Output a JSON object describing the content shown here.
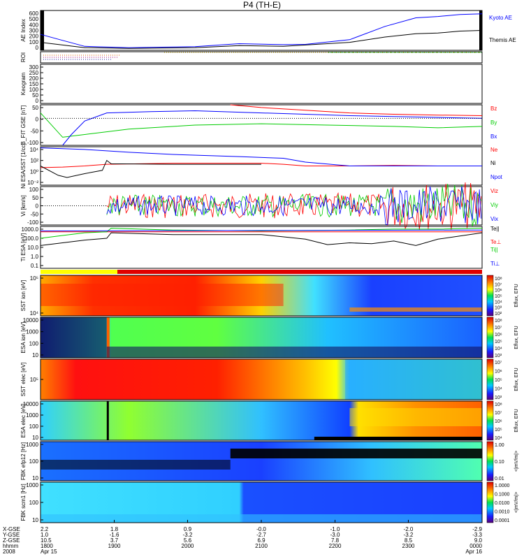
{
  "title": "P4 (TH-E)",
  "colors": {
    "kyoto": "#0000ff",
    "themis": "#000000",
    "bz": "#ff0000",
    "by": "#00cc00",
    "bx": "#0000ff",
    "ne": "#ff0000",
    "ni": "#000000",
    "npot": "#0000ff",
    "vx": "#0000ff",
    "vy": "#00cc00",
    "vz": "#ff0000",
    "tpar": "#000000",
    "teperp": "#ff0000",
    "tipar": "#00cc00",
    "tiperp": "#0000ff"
  },
  "chart_data": [
    {
      "id": "ae",
      "type": "line",
      "ylabel": "AE Index",
      "yticks": [
        "600",
        "500",
        "400",
        "300",
        "200",
        "100",
        "0"
      ],
      "ylim": [
        0,
        600
      ],
      "series": [
        {
          "name": "Kyoto AE",
          "x": [
            0,
            0.05,
            0.1,
            0.2,
            0.35,
            0.45,
            0.55,
            0.6,
            0.7,
            0.78,
            0.85,
            0.9,
            0.95,
            1.0
          ],
          "values": [
            240,
            150,
            60,
            40,
            55,
            100,
            85,
            90,
            160,
            360,
            490,
            510,
            540,
            550
          ]
        },
        {
          "name": "Themis AE",
          "x": [
            0,
            0.05,
            0.1,
            0.2,
            0.35,
            0.45,
            0.55,
            0.6,
            0.7,
            0.78,
            0.85,
            0.9,
            0.95,
            1.0
          ],
          "values": [
            120,
            80,
            40,
            30,
            40,
            70,
            60,
            80,
            120,
            200,
            250,
            260,
            290,
            300
          ]
        }
      ]
    },
    {
      "id": "roi",
      "type": "bar",
      "ylabel": "ROI"
    },
    {
      "id": "keogram",
      "type": "heatmap",
      "ylabel": "Keogram",
      "yticks": [
        "300",
        "250",
        "200",
        "150",
        "100",
        "50",
        "0"
      ]
    },
    {
      "id": "bfield",
      "type": "line",
      "ylabel": "B_FIT GSE [nT]",
      "yticks": [
        "50",
        "0",
        "-50",
        "-100"
      ],
      "ylim": [
        -100,
        50
      ],
      "series": [
        {
          "name": "Bz",
          "x": [
            0.43,
            0.5,
            0.6,
            0.7,
            0.8,
            0.9,
            1.0
          ],
          "values": [
            50,
            40,
            30,
            20,
            15,
            12,
            10
          ]
        },
        {
          "name": "By",
          "x": [
            0,
            0.05,
            0.1,
            0.2,
            0.35,
            0.5,
            0.65,
            0.8,
            0.9,
            1.0
          ],
          "values": [
            20,
            -70,
            -60,
            -40,
            -25,
            -20,
            -25,
            -30,
            -35,
            -30
          ]
        },
        {
          "name": "Bx",
          "x": [
            0.05,
            0.07,
            0.1,
            0.15,
            0.25,
            0.35,
            0.5,
            0.6,
            0.7,
            0.85,
            1.0
          ],
          "values": [
            -100,
            -60,
            -10,
            20,
            25,
            28,
            20,
            15,
            10,
            5,
            0
          ]
        }
      ]
    },
    {
      "id": "density",
      "type": "line",
      "ylabel": "Ni ESA/SST [1/cc]",
      "yticks": [
        "10⁴",
        "10²",
        "10⁰",
        "10⁻²"
      ],
      "ylim": [
        -3,
        4
      ],
      "series": [
        {
          "name": "Ne",
          "x": [
            0,
            0.05,
            0.1,
            0.15,
            0.3,
            0.5,
            0.55,
            0.6,
            0.7,
            0.8,
            0.9,
            1.0
          ],
          "values": [
            0.2,
            0.3,
            0.5,
            0.8,
            1.0,
            1.0,
            0.8,
            0.5,
            0.5,
            0.6,
            0.5,
            0.5
          ]
        },
        {
          "name": "Ni",
          "x": [
            0,
            0.04,
            0.06,
            0.1,
            0.14,
            0.15,
            0.16,
            0.3,
            0.5
          ],
          "values": [
            0.5,
            -1.2,
            -1.6,
            -0.9,
            -0.3,
            1.5,
            0.9,
            0.8,
            0.8
          ]
        },
        {
          "name": "Npot",
          "x": [
            0,
            0.1,
            0.2,
            0.3,
            0.45,
            0.55,
            0.6,
            0.7,
            0.8,
            0.9,
            1.0
          ],
          "values": [
            3.8,
            3.5,
            3.0,
            2.6,
            2.2,
            1.9,
            1.2,
            0.5,
            0.5,
            0.5,
            0.5
          ]
        }
      ]
    },
    {
      "id": "velocity",
      "type": "line",
      "ylabel": "Vi [km/s]",
      "yticks": [
        "100",
        "50",
        "0",
        "-50",
        "-100"
      ],
      "ylim": [
        -100,
        100
      ],
      "series": [
        {
          "name": "Viz",
          "x": [
            0.15,
            1.0
          ],
          "values": [
            0,
            0
          ]
        },
        {
          "name": "Viy",
          "x": [
            0.15,
            1.0
          ],
          "values": [
            0,
            0
          ]
        },
        {
          "name": "Vix",
          "x": [
            0.15,
            1.0
          ],
          "values": [
            0,
            0
          ]
        }
      ]
    },
    {
      "id": "temperature",
      "type": "line",
      "ylabel": "Ti ESA [eV]",
      "yticks": [
        "1000.0",
        "100.0",
        "10.0",
        "1.0",
        "0.1"
      ],
      "ylim": [
        -1,
        3.6
      ],
      "series": [
        {
          "name": "Te||",
          "x": [
            0,
            0.05,
            0.1,
            0.15,
            0.16,
            0.3,
            0.5,
            0.6,
            0.65,
            0.7,
            0.75,
            0.8,
            0.85,
            0.9,
            1.0
          ],
          "values": [
            1.5,
            1.8,
            2.1,
            2.3,
            2.9,
            2.7,
            2.7,
            2.2,
            1.6,
            1.8,
            1.7,
            2.0,
            1.5,
            2.2,
            2.9
          ]
        },
        {
          "name": "Te⊥",
          "x": [
            0,
            1.0
          ],
          "values": [
            3.0,
            3.0
          ]
        },
        {
          "name": "Ti||",
          "x": [
            0,
            0.05,
            0.1,
            0.15,
            0.16,
            0.3,
            0.5,
            0.7,
            0.8,
            0.9,
            1.0
          ],
          "values": [
            2.3,
            2.6,
            2.9,
            3.0,
            3.4,
            3.2,
            3.1,
            3.2,
            3.3,
            3.3,
            3.4
          ]
        },
        {
          "name": "Ti⊥",
          "x": [
            0,
            1.0
          ],
          "values": [
            3.1,
            3.2
          ]
        }
      ]
    },
    {
      "id": "sst_ion",
      "type": "heatmap",
      "ylabel": "SST ion [eV]",
      "yticks": [
        "10⁵",
        "10⁴"
      ],
      "colorbar_ticks": [
        "10⁸",
        "10⁷",
        "10⁶",
        "10⁵",
        "10⁴",
        "10³",
        "10²"
      ],
      "colorbar_label": "Eflux, EFU"
    },
    {
      "id": "esa_ion",
      "type": "heatmap",
      "ylabel": "ESA ion [eV]",
      "yticks": [
        "10000",
        "1000",
        "100",
        "10"
      ],
      "colorbar_ticks": [
        "10⁸",
        "10⁷",
        "10⁶",
        "10⁵",
        "10⁴",
        "10³"
      ],
      "colorbar_label": "Eflux, EFU"
    },
    {
      "id": "sst_elec",
      "type": "heatmap",
      "ylabel": "SST elec [eV]",
      "yticks": [
        "10⁵"
      ],
      "colorbar_ticks": [
        "10⁷",
        "10⁶",
        "10⁵",
        "10⁴",
        "10³"
      ],
      "colorbar_label": "Eflux, EFU"
    },
    {
      "id": "esa_elec",
      "type": "heatmap",
      "ylabel": "ESA elec [eV]",
      "yticks": [
        "10000",
        "1000",
        "100",
        "10"
      ],
      "colorbar_ticks": [
        "10⁸",
        "10⁷",
        "10⁶",
        "10⁵",
        "10⁴"
      ],
      "colorbar_label": "Eflux, EFU"
    },
    {
      "id": "fbk_e",
      "type": "heatmap",
      "ylabel": "FBK efp12 [Hz]",
      "yticks": [
        "1000",
        "100",
        "10"
      ],
      "colorbar_ticks": [
        "1.00",
        "0.10",
        "0.01"
      ],
      "colorbar_label": "<|mV/m|>"
    },
    {
      "id": "fbk_b",
      "type": "heatmap",
      "ylabel": "FBK scm1 [Hz]",
      "yticks": [
        "1000",
        "100",
        "10"
      ],
      "colorbar_ticks": [
        "1.0000",
        "0.1000",
        "0.0100",
        "0.0010",
        "0.0001"
      ],
      "colorbar_label": "<|mV/m|>"
    }
  ],
  "x_axis": {
    "row_labels": [
      "X-GSE",
      "Y-GSE",
      "Z-GSE",
      "hhmm",
      "2008"
    ],
    "ticks": [
      {
        "t": 0.0,
        "lines": [
          "2.2",
          "1.0",
          "10.5",
          "1800",
          "Apr 15"
        ]
      },
      {
        "t": 0.167,
        "lines": [
          "1.8",
          "-1.6",
          "3.7",
          "1900",
          ""
        ]
      },
      {
        "t": 0.333,
        "lines": [
          "0.9",
          "-3.2",
          "5.6",
          "2000",
          ""
        ]
      },
      {
        "t": 0.5,
        "lines": [
          "-0.0",
          "-2.7",
          "6.9",
          "2100",
          ""
        ]
      },
      {
        "t": 0.667,
        "lines": [
          "-1.0",
          "-3.0",
          "7.8",
          "2200",
          ""
        ]
      },
      {
        "t": 0.833,
        "lines": [
          "-2.0",
          "-3.2",
          "8.5",
          "2300",
          ""
        ]
      },
      {
        "t": 1.0,
        "lines": [
          "-2.9",
          "-3.3",
          "9.0",
          "0000",
          "Apr 16"
        ]
      }
    ]
  }
}
